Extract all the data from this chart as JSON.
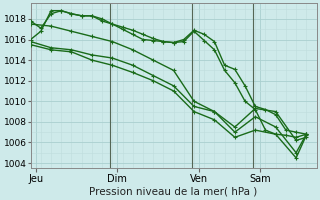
{
  "bg_color": "#ceeaea",
  "grid_color_major": "#aacfcf",
  "grid_color_minor": "#bedddd",
  "line_color": "#1a6b1a",
  "xlabel": "Pression niveau de la mer( hPa )",
  "ylim": [
    1003.5,
    1019.5
  ],
  "yticks": [
    1004,
    1006,
    1008,
    1010,
    1012,
    1014,
    1016,
    1018
  ],
  "day_labels": [
    "Jeu",
    "Dim",
    "Ven",
    "Sam"
  ],
  "day_positions": [
    0.5,
    8.5,
    16.5,
    22.5
  ],
  "vlines_x": [
    7.8,
    15.8,
    21.8
  ],
  "xlim": [
    0,
    28
  ],
  "line1_x": [
    0,
    1,
    2,
    3,
    4,
    5,
    6,
    7,
    8,
    9,
    10,
    11,
    12,
    13,
    14,
    15,
    16,
    17,
    18,
    19,
    20,
    21,
    22,
    23,
    24,
    25,
    26,
    27
  ],
  "line1_y": [
    1017.8,
    1017.1,
    1018.5,
    1018.8,
    1018.5,
    1018.3,
    1018.3,
    1018.0,
    1017.5,
    1017.2,
    1016.9,
    1016.5,
    1016.1,
    1015.8,
    1015.7,
    1016.0,
    1016.9,
    1016.5,
    1015.8,
    1013.5,
    1013.1,
    1011.5,
    1009.5,
    1009.2,
    1008.7,
    1007.2,
    1007.0,
    1006.8
  ],
  "line2_x": [
    0,
    1,
    2,
    3,
    4,
    5,
    6,
    7,
    8,
    9,
    10,
    11,
    12,
    13,
    14,
    15,
    16,
    17,
    18,
    19,
    20,
    21,
    22,
    23,
    24,
    25,
    26,
    27
  ],
  "line2_y": [
    1016.0,
    1016.8,
    1018.8,
    1018.8,
    1018.5,
    1018.3,
    1018.3,
    1017.8,
    1017.5,
    1017.0,
    1016.5,
    1016.0,
    1015.9,
    1015.8,
    1015.7,
    1015.8,
    1016.8,
    1015.9,
    1015.0,
    1013.0,
    1011.8,
    1010.0,
    1009.2,
    1007.2,
    1006.8,
    1006.7,
    1006.5,
    1006.8
  ],
  "line3_x": [
    0,
    2,
    4,
    6,
    8,
    10,
    12,
    14,
    16,
    18,
    20,
    22,
    24,
    26,
    27
  ],
  "line3_y": [
    1017.5,
    1017.3,
    1016.8,
    1016.3,
    1015.8,
    1015.0,
    1014.0,
    1013.0,
    1010.0,
    1009.0,
    1007.5,
    1009.3,
    1009.0,
    1006.2,
    1006.5
  ],
  "line4_x": [
    0,
    2,
    4,
    6,
    8,
    10,
    12,
    14,
    16,
    18,
    20,
    22,
    24,
    26,
    27
  ],
  "line4_y": [
    1015.8,
    1015.2,
    1015.0,
    1014.5,
    1014.2,
    1013.5,
    1012.5,
    1011.5,
    1009.5,
    1009.0,
    1007.0,
    1008.5,
    1007.5,
    1005.0,
    1006.8
  ],
  "line5_x": [
    0,
    2,
    4,
    6,
    8,
    10,
    12,
    14,
    16,
    18,
    20,
    22,
    24,
    26,
    27
  ],
  "line5_y": [
    1015.5,
    1015.0,
    1014.8,
    1014.0,
    1013.5,
    1012.8,
    1012.0,
    1011.0,
    1009.0,
    1008.2,
    1006.5,
    1007.2,
    1006.8,
    1004.5,
    1006.7
  ],
  "markersize": 2.0
}
